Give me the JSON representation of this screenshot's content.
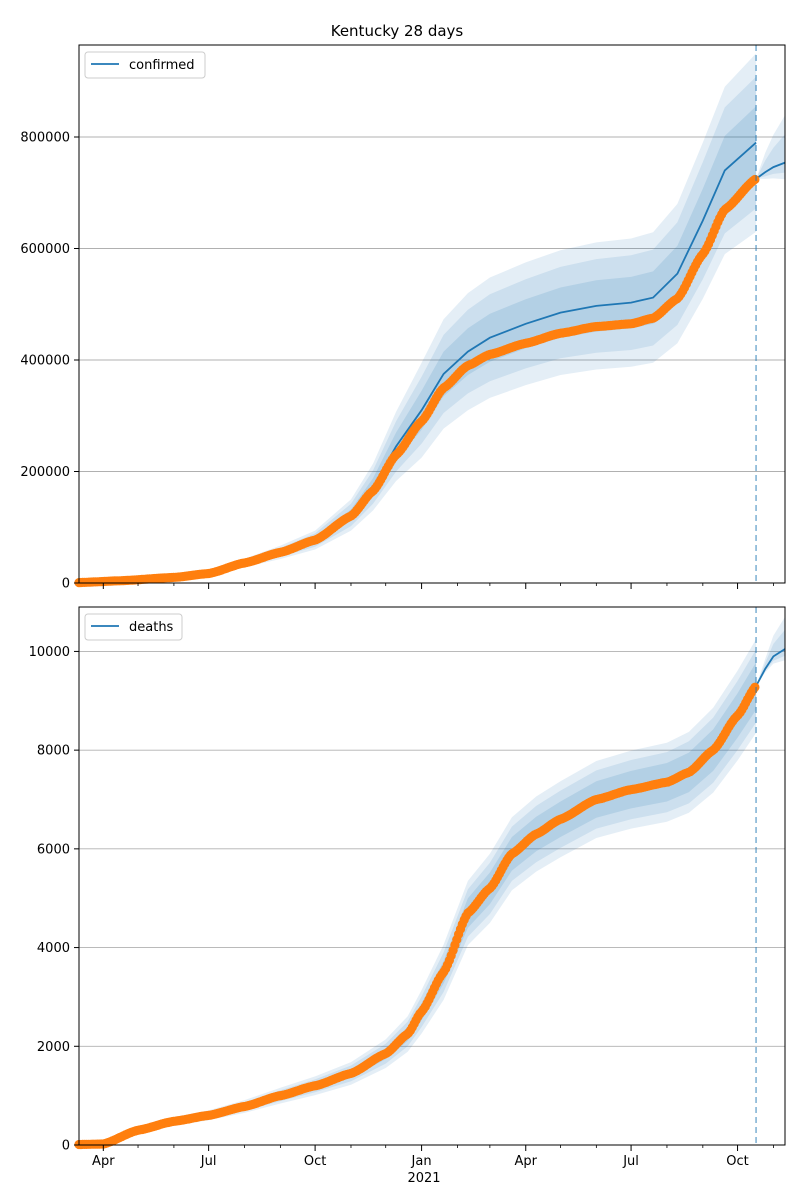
{
  "chart_data": {
    "type": "line",
    "title": "Kentucky 28 days",
    "x_ticks": [
      "Apr",
      "Jul",
      "Oct",
      "Jan",
      "Apr",
      "Jul",
      "Oct"
    ],
    "x_year_label": "2021",
    "xlim": [
      "2020-03-11",
      "2021-11-11"
    ],
    "forecast_start": "2021-10-17",
    "colors": {
      "model": "#1f77b4",
      "observed": "#ff7f0e",
      "band": "#1f77b4",
      "grid": "#b0b0b0"
    },
    "grid": true,
    "legend_position": "top-left",
    "panels": [
      {
        "name": "confirmed",
        "legend": "confirmed",
        "ylim": [
          0,
          965000
        ],
        "y_ticks": [
          "0",
          "200000",
          "400000",
          "600000",
          "800000"
        ],
        "y_tick_values": [
          0,
          200000,
          400000,
          600000,
          800000
        ],
        "x": [
          "2020-03-11",
          "2020-04-15",
          "2020-06-01",
          "2020-07-01",
          "2020-08-01",
          "2020-09-01",
          "2020-10-01",
          "2020-11-01",
          "2020-11-20",
          "2020-12-10",
          "2021-01-01",
          "2021-01-20",
          "2021-02-10",
          "2021-03-01",
          "2021-04-01",
          "2021-05-01",
          "2021-06-01",
          "2021-07-01",
          "2021-07-20",
          "2021-08-10",
          "2021-09-01",
          "2021-09-20",
          "2021-10-17"
        ],
        "observed": [
          800,
          4000,
          10000,
          17000,
          36000,
          55000,
          77000,
          120000,
          165000,
          230000,
          290000,
          350000,
          390000,
          410000,
          430000,
          448000,
          460000,
          465000,
          475000,
          510000,
          590000,
          670000,
          725000
        ],
        "fitted": [
          800,
          4000,
          10000,
          17000,
          36000,
          55000,
          77000,
          122000,
          172000,
          245000,
          310000,
          375000,
          415000,
          440000,
          465000,
          485000,
          497000,
          503000,
          512000,
          555000,
          650000,
          740000,
          790000
        ],
        "band_inner_width": [
          0,
          400,
          1000,
          1500,
          2500,
          4000,
          6000,
          10000,
          16000,
          25000,
          35000,
          40000,
          42000,
          43000,
          44000,
          45000,
          46000,
          46000,
          47000,
          50000,
          57000,
          62000,
          65000
        ],
        "band_mid_width": [
          0,
          800,
          2000,
          3000,
          5000,
          8000,
          12000,
          20000,
          30000,
          45000,
          60000,
          70000,
          75000,
          78000,
          80000,
          82000,
          84000,
          85000,
          86000,
          92000,
          105000,
          113000,
          118000
        ],
        "band_outer_width": [
          0,
          1200,
          3000,
          4500,
          7500,
          12000,
          17000,
          28000,
          42000,
          62000,
          85000,
          98000,
          105000,
          108000,
          110000,
          112000,
          114000,
          115000,
          117000,
          125000,
          140000,
          150000,
          160000
        ],
        "forecast_x": [
          "2021-10-17",
          "2021-10-25",
          "2021-11-01",
          "2021-11-11"
        ],
        "forecast": [
          725000,
          737000,
          746000,
          754000
        ],
        "forecast_band_width": [
          0,
          35000,
          58000,
          85000
        ]
      },
      {
        "name": "deaths",
        "legend": "deaths",
        "ylim": [
          0,
          10900
        ],
        "y_ticks": [
          "0",
          "2000",
          "4000",
          "6000",
          "8000",
          "10000"
        ],
        "y_tick_values": [
          0,
          2000,
          4000,
          6000,
          8000,
          10000
        ],
        "x": [
          "2020-03-11",
          "2020-04-01",
          "2020-05-01",
          "2020-06-01",
          "2020-07-01",
          "2020-08-01",
          "2020-09-01",
          "2020-10-01",
          "2020-11-01",
          "2020-12-01",
          "2020-12-20",
          "2021-01-01",
          "2021-01-20",
          "2021-02-10",
          "2021-03-01",
          "2021-03-20",
          "2021-04-10",
          "2021-05-01",
          "2021-06-01",
          "2021-07-01",
          "2021-08-01",
          "2021-08-20",
          "2021-09-10",
          "2021-10-01",
          "2021-10-17"
        ],
        "observed": [
          10,
          20,
          300,
          480,
          600,
          780,
          1000,
          1200,
          1450,
          1850,
          2250,
          2700,
          3500,
          4700,
          5200,
          5900,
          6300,
          6600,
          7000,
          7200,
          7350,
          7550,
          8000,
          8700,
          9300
        ],
        "fitted": [
          10,
          20,
          300,
          480,
          600,
          780,
          1000,
          1200,
          1450,
          1850,
          2250,
          2700,
          3500,
          4700,
          5200,
          5900,
          6300,
          6600,
          7000,
          7200,
          7350,
          7550,
          8000,
          8700,
          9300
        ],
        "band_inner_width": [
          0,
          5,
          20,
          30,
          40,
          50,
          60,
          70,
          90,
          110,
          140,
          170,
          230,
          300,
          320,
          340,
          350,
          360,
          370,
          380,
          390,
          400,
          420,
          450,
          480
        ],
        "band_mid_width": [
          0,
          10,
          40,
          60,
          70,
          90,
          110,
          130,
          160,
          200,
          250,
          310,
          400,
          480,
          520,
          550,
          570,
          580,
          590,
          600,
          610,
          630,
          660,
          700,
          740
        ],
        "band_outer_width": [
          0,
          15,
          60,
          90,
          100,
          130,
          160,
          190,
          230,
          290,
          360,
          440,
          560,
          650,
          700,
          740,
          760,
          770,
          780,
          790,
          800,
          820,
          860,
          910,
          950
        ],
        "forecast_x": [
          "2021-10-17",
          "2021-10-25",
          "2021-11-01",
          "2021-11-11"
        ],
        "forecast": [
          9300,
          9650,
          9900,
          10050
        ],
        "forecast_band_width": [
          0,
          200,
          420,
          650
        ]
      }
    ]
  }
}
